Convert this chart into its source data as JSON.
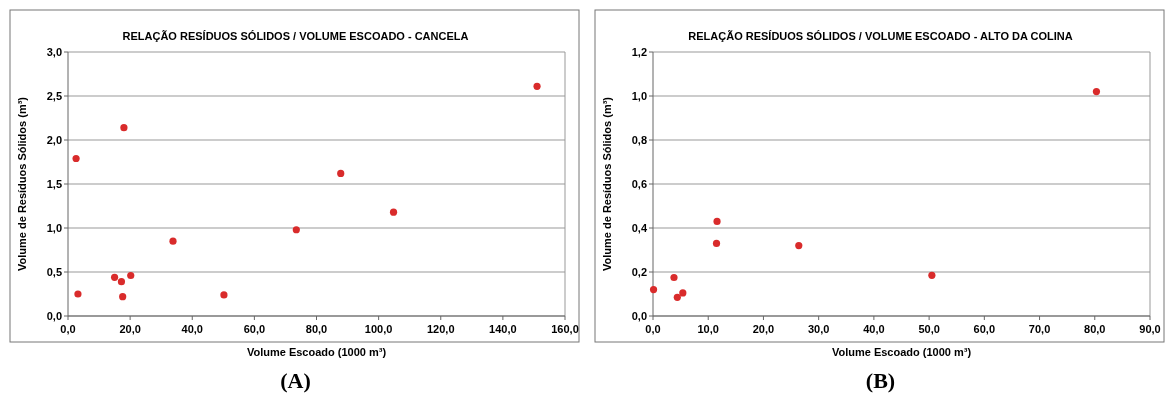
{
  "chart_data": [
    {
      "type": "scatter",
      "title": "RELAÇÃO RESÍDUOS SÓLIDOS / VOLUME ESCOADO - CANCELA",
      "xlabel": "Volume Escoado (1000 m³)",
      "ylabel": "Volume de Resíduos Sólidos (m³)",
      "annotations": [
        "(A)"
      ],
      "marker": "circle",
      "grid": "y",
      "x": [
        2.6,
        3.2,
        15,
        17.2,
        17.6,
        18,
        20.2,
        33.8,
        50.2,
        73.5,
        87.8,
        104.8,
        151
      ],
      "series": [
        {
          "color": "#d92b2b",
          "values": [
            1.79,
            0.25,
            0.44,
            0.39,
            0.22,
            2.14,
            0.46,
            0.85,
            0.24,
            0.98,
            1.62,
            1.18,
            2.61
          ]
        }
      ],
      "xlim": [
        0,
        160
      ],
      "xticks": [
        {
          "value": 0,
          "label": "0,0"
        },
        {
          "value": 20,
          "label": "20,0"
        },
        {
          "value": 40,
          "label": "40,0"
        },
        {
          "value": 60,
          "label": "60,0"
        },
        {
          "value": 80,
          "label": "80,0"
        },
        {
          "value": 100,
          "label": "100,0"
        },
        {
          "value": 120,
          "label": "120,0"
        },
        {
          "value": 140,
          "label": "140,0"
        },
        {
          "value": 160,
          "label": "160,0"
        }
      ],
      "ylim": [
        0,
        3
      ],
      "yticks": [
        {
          "value": 0,
          "label": "0,0"
        },
        {
          "value": 0.5,
          "label": "0,5"
        },
        {
          "value": 1,
          "label": "1,0"
        },
        {
          "value": 1.5,
          "label": "1,5"
        },
        {
          "value": 2,
          "label": "2,0"
        },
        {
          "value": 2.5,
          "label": "2,5"
        },
        {
          "value": 3,
          "label": "3,0"
        }
      ]
    },
    {
      "type": "scatter",
      "title": "RELAÇÃO RESÍDUOS SÓLIDOS / VOLUME ESCOADO - ALTO DA COLINA",
      "xlabel": "Volume Escoado (1000 m³)",
      "ylabel": "Volume de Resíduos Sólidos (m³)",
      "annotations": [
        "(B)"
      ],
      "marker": "circle",
      "grid": "y",
      "x": [
        0.1,
        3.8,
        4.4,
        5.4,
        11.5,
        11.6,
        26.4,
        50.5,
        80.3
      ],
      "series": [
        {
          "color": "#d92b2b",
          "values": [
            0.12,
            0.175,
            0.085,
            0.105,
            0.33,
            0.43,
            0.32,
            0.185,
            1.02
          ]
        }
      ],
      "xlim": [
        0,
        90
      ],
      "xticks": [
        {
          "value": 0,
          "label": "0,0"
        },
        {
          "value": 10,
          "label": "10,0"
        },
        {
          "value": 20,
          "label": "20,0"
        },
        {
          "value": 30,
          "label": "30,0"
        },
        {
          "value": 40,
          "label": "40,0"
        },
        {
          "value": 50,
          "label": "50,0"
        },
        {
          "value": 60,
          "label": "60,0"
        },
        {
          "value": 70,
          "label": "70,0"
        },
        {
          "value": 80,
          "label": "80,0"
        },
        {
          "value": 90,
          "label": "90,0"
        }
      ],
      "ylim": [
        0,
        1.2
      ],
      "yticks": [
        {
          "value": 0,
          "label": "0,0"
        },
        {
          "value": 0.2,
          "label": "0,2"
        },
        {
          "value": 0.4,
          "label": "0,4"
        },
        {
          "value": 0.6,
          "label": "0,6"
        },
        {
          "value": 0.8,
          "label": "0,8"
        },
        {
          "value": 1,
          "label": "1,0"
        },
        {
          "value": 1.2,
          "label": "1,2"
        }
      ]
    }
  ]
}
